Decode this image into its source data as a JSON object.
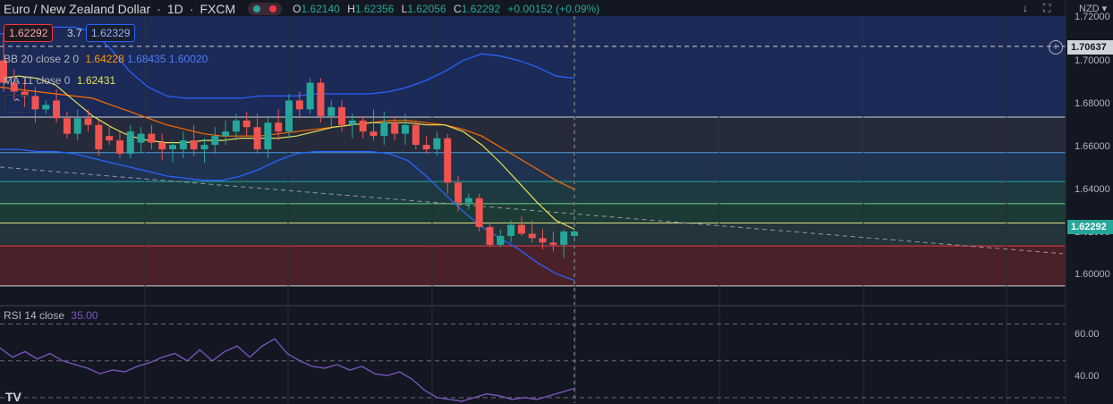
{
  "header": {
    "symbol": "Euro / New Zealand Dollar",
    "interval": "1D",
    "exchange": "FXCM",
    "open_label": "O",
    "open": "1.62140",
    "high_label": "H",
    "high": "1.62356",
    "low_label": "L",
    "low": "1.62056",
    "close_label": "C",
    "close": "1.62292",
    "change": "+0.00152 (+0.09%)"
  },
  "trade": {
    "sell": "1.62292",
    "spread": "3.7",
    "buy": "1.62329"
  },
  "indicators": {
    "bb_label": "BB 20 close 2 0",
    "bb_basis": "1.64228",
    "bb_upper": "1.68435",
    "bb_lower": "1.60020",
    "ma_label": "MA 11 close 0",
    "ma_value": "1.62431",
    "rsi_label": "RSI 14 close",
    "rsi_value": "35.00"
  },
  "currency": "NZD",
  "price_axis": [
    "1.72000",
    "1.70000",
    "1.68000",
    "1.66000",
    "1.64000",
    "1.62000",
    "1.60000"
  ],
  "rsi_axis": [
    "60.00",
    "40.00"
  ],
  "tags": {
    "top_line": "1.70637",
    "last": "1.62292"
  },
  "colors": {
    "up": "#26a69a",
    "down": "#f05350",
    "bb_upper": "#2962ff",
    "bb_basis": "#ff6d00",
    "ma": "#e8e05a",
    "rsi": "#7e57c2"
  },
  "chart_data": {
    "type": "candlestick",
    "ylim": [
      1.592,
      1.72
    ],
    "horizontal_levels": [
      1.70637,
      1.6745,
      1.6585,
      1.6455,
      1.6355,
      1.6268,
      1.6165,
      1.5985
    ],
    "candles": [
      [
        1.7,
        1.712,
        1.686,
        1.69
      ],
      [
        1.69,
        1.696,
        1.682,
        1.686
      ],
      [
        1.686,
        1.692,
        1.679,
        1.684
      ],
      [
        1.684,
        1.688,
        1.672,
        1.678
      ],
      [
        1.678,
        1.682,
        1.676,
        1.68
      ],
      [
        1.682,
        1.687,
        1.672,
        1.674
      ],
      [
        1.674,
        1.677,
        1.665,
        1.667
      ],
      [
        1.667,
        1.678,
        1.664,
        1.674
      ],
      [
        1.674,
        1.678,
        1.668,
        1.671
      ],
      [
        1.671,
        1.673,
        1.657,
        1.66
      ],
      [
        1.666,
        1.671,
        1.662,
        1.664
      ],
      [
        1.664,
        1.668,
        1.656,
        1.658
      ],
      [
        1.658,
        1.671,
        1.656,
        1.668
      ],
      [
        1.663,
        1.67,
        1.658,
        1.667
      ],
      [
        1.667,
        1.671,
        1.66,
        1.663
      ],
      [
        1.663,
        1.667,
        1.655,
        1.66
      ],
      [
        1.66,
        1.664,
        1.654,
        1.662
      ],
      [
        1.66,
        1.668,
        1.656,
        1.664
      ],
      [
        1.664,
        1.671,
        1.657,
        1.66
      ],
      [
        1.66,
        1.665,
        1.654,
        1.662
      ],
      [
        1.662,
        1.67,
        1.658,
        1.666
      ],
      [
        1.666,
        1.673,
        1.662,
        1.668
      ],
      [
        1.668,
        1.676,
        1.664,
        1.673
      ],
      [
        1.673,
        1.677,
        1.666,
        1.67
      ],
      [
        1.67,
        1.676,
        1.658,
        1.66
      ],
      [
        1.66,
        1.675,
        1.656,
        1.672
      ],
      [
        1.672,
        1.678,
        1.664,
        1.668
      ],
      [
        1.668,
        1.685,
        1.665,
        1.682
      ],
      [
        1.682,
        1.686,
        1.674,
        1.678
      ],
      [
        1.678,
        1.692,
        1.676,
        1.69
      ],
      [
        1.69,
        1.692,
        1.672,
        1.675
      ],
      [
        1.675,
        1.682,
        1.67,
        1.679
      ],
      [
        1.679,
        1.682,
        1.668,
        1.671
      ],
      [
        1.671,
        1.676,
        1.665,
        1.673
      ],
      [
        1.673,
        1.675,
        1.665,
        1.668
      ],
      [
        1.668,
        1.678,
        1.664,
        1.666
      ],
      [
        1.666,
        1.677,
        1.662,
        1.672
      ],
      [
        1.672,
        1.675,
        1.664,
        1.667
      ],
      [
        1.667,
        1.676,
        1.662,
        1.671
      ],
      [
        1.671,
        1.673,
        1.66,
        1.662
      ],
      [
        1.662,
        1.666,
        1.658,
        1.66
      ],
      [
        1.66,
        1.668,
        1.657,
        1.665
      ],
      [
        1.665,
        1.667,
        1.64,
        1.645
      ],
      [
        1.645,
        1.648,
        1.632,
        1.636
      ],
      [
        1.636,
        1.64,
        1.633,
        1.638
      ],
      [
        1.638,
        1.64,
        1.623,
        1.625
      ],
      [
        1.625,
        1.627,
        1.616,
        1.617
      ],
      [
        1.617,
        1.624,
        1.616,
        1.621
      ],
      [
        1.621,
        1.628,
        1.618,
        1.626
      ],
      [
        1.626,
        1.63,
        1.621,
        1.622
      ],
      [
        1.622,
        1.628,
        1.618,
        1.62
      ],
      [
        1.62,
        1.624,
        1.615,
        1.618
      ],
      [
        1.618,
        1.623,
        1.614,
        1.617
      ],
      [
        1.617,
        1.624,
        1.611,
        1.623
      ],
      [
        1.621,
        1.624,
        1.62,
        1.623
      ]
    ],
    "bb_upper": [
      1.712,
      1.713,
      1.714,
      1.715,
      1.715,
      1.713,
      1.705,
      1.695,
      1.688,
      1.684,
      1.683,
      1.683,
      1.683,
      1.683,
      1.684,
      1.684,
      1.684,
      1.685,
      1.685,
      1.685,
      1.685,
      1.686,
      1.688,
      1.691,
      1.695,
      1.7,
      1.703,
      1.702,
      1.7,
      1.697,
      1.693,
      1.692
    ],
    "bb_lower": [
      1.66,
      1.66,
      1.659,
      1.659,
      1.658,
      1.656,
      1.654,
      1.652,
      1.65,
      1.648,
      1.647,
      1.646,
      1.646,
      1.648,
      1.651,
      1.655,
      1.658,
      1.659,
      1.659,
      1.659,
      1.659,
      1.658,
      1.655,
      1.648,
      1.64,
      1.632,
      1.625,
      1.62,
      1.615,
      1.609,
      1.604,
      1.601
    ],
    "bb_basis": [
      1.688,
      1.687,
      1.686,
      1.685,
      1.684,
      1.683,
      1.68,
      1.677,
      1.674,
      1.671,
      1.669,
      1.667,
      1.666,
      1.666,
      1.666,
      1.667,
      1.668,
      1.669,
      1.67,
      1.671,
      1.672,
      1.673,
      1.673,
      1.672,
      1.671,
      1.669,
      1.666,
      1.661,
      1.656,
      1.651,
      1.646,
      1.642
    ],
    "ma": [
      1.692,
      1.693,
      1.692,
      1.689,
      1.682,
      1.675,
      1.67,
      1.666,
      1.664,
      1.663,
      1.663,
      1.664,
      1.664,
      1.665,
      1.665,
      1.665,
      1.666,
      1.668,
      1.67,
      1.671,
      1.672,
      1.672,
      1.672,
      1.671,
      1.671,
      1.668,
      1.662,
      1.654,
      1.645,
      1.636,
      1.628,
      1.624
    ],
    "trendline": [
      [
        0,
        1.652
      ],
      [
        1188,
        1.613
      ]
    ],
    "rsi": [
      57,
      52,
      55,
      51,
      54,
      50,
      48,
      46,
      43,
      45,
      44,
      47,
      49,
      52,
      54,
      50,
      56,
      50,
      55,
      58,
      52,
      58,
      62,
      54,
      50,
      47,
      46,
      48,
      45,
      47,
      43,
      42,
      44,
      40,
      34,
      30,
      29,
      28,
      30,
      32,
      31,
      29,
      30,
      29,
      31,
      33,
      35
    ]
  }
}
